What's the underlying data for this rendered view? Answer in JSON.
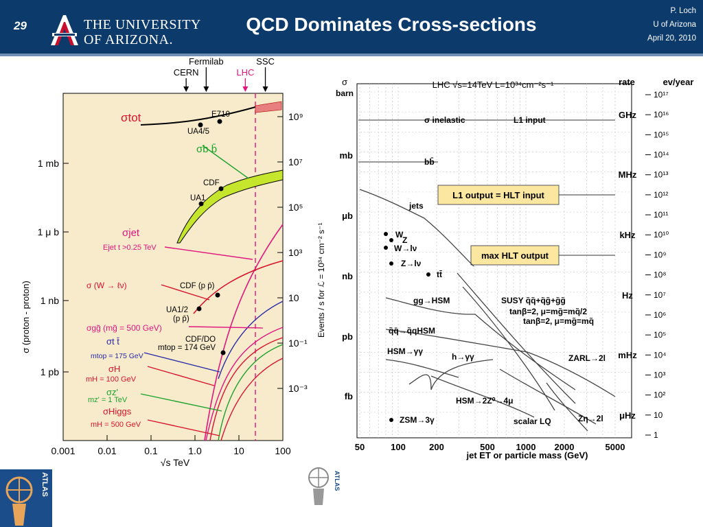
{
  "header": {
    "slide_number": "29",
    "university_line1": "THE UNIVERSITY",
    "university_line2": "OF ARIZONA.",
    "title": "QCD Dominates Cross-sections",
    "author": "P. Loch",
    "affiliation": "U of Arizona",
    "date": "April 20, 2010"
  },
  "colors": {
    "header_bg": "#0c3a6b",
    "left_plot_bg": "#f7ebcc",
    "magenta": "#e0157f",
    "red": "#d8122a",
    "green": "#1aa12a",
    "lime": "#c6e62e",
    "blue": "#2929a6"
  },
  "chart_data": [
    {
      "type": "line",
      "xlabel": "√s  TeV",
      "ylabel": "σ (proton - proton)",
      "right_axis_label": "Events / s for ℒ = 10³⁴ cm⁻² s⁻¹",
      "x_scale": "log",
      "xlim": [
        0.001,
        100
      ],
      "x_ticks": [
        "0.001",
        "0.01",
        "0.1",
        "1.0",
        "10",
        "100"
      ],
      "y_ticks_left": [
        "1 mb",
        "1 μ b",
        "1 nb",
        "1 pb"
      ],
      "y_ticks_right": [
        "10⁹",
        "10⁷",
        "10⁵",
        "10³",
        "10",
        "10⁻¹",
        "10⁻³"
      ],
      "top_markers": [
        {
          "label": "CERN",
          "sqrt_s_TeV": 0.63
        },
        {
          "label": "Fermilab",
          "sqrt_s_TeV": 1.8
        },
        {
          "label": "LHC",
          "sqrt_s_TeV": 14
        },
        {
          "label": "SSC",
          "sqrt_s_TeV": 40
        }
      ],
      "curve_labels": [
        {
          "text": "σtot"
        },
        {
          "text": "σb b̄"
        },
        {
          "text": "σjet"
        },
        {
          "text": "Ejet t >0.25 TeV"
        },
        {
          "text": "σ (W → ℓν)"
        },
        {
          "text": "σgg̃ (mg̃ = 500 GeV)"
        },
        {
          "text": "σt t̄"
        },
        {
          "text": "mtop = 175 GeV"
        },
        {
          "text": "σH"
        },
        {
          "text": "mH = 100 GeV"
        },
        {
          "text": "σz'"
        },
        {
          "text": "mz' = 1 TeV"
        },
        {
          "text": "σHiggs"
        },
        {
          "text": "mH = 500 GeV"
        }
      ],
      "experiment_points": [
        {
          "label": "E710",
          "sqrt_s_TeV": 1.8
        },
        {
          "label": "UA4/5",
          "sqrt_s_TeV": 0.55
        },
        {
          "label": "CDF",
          "sqrt_s_TeV": 1.8
        },
        {
          "label": "UA1",
          "sqrt_s_TeV": 0.63
        },
        {
          "label": "CDF (p p̄)",
          "sqrt_s_TeV": 1.8
        },
        {
          "label": "UA1/2",
          "sqrt_s_TeV": 0.63
        },
        {
          "label": "(p p̄)",
          "sqrt_s_TeV": 0.63
        },
        {
          "label": "CDF/DO",
          "sqrt_s_TeV": 1.8
        },
        {
          "label": "mtop = 174 GeV",
          "sqrt_s_TeV": 1.8
        }
      ]
    },
    {
      "type": "line",
      "title": "LHC    √s=14TeV      L=10³⁴cm⁻²s⁻¹",
      "xlabel": "jet ET or particle mass (GeV)",
      "ylabel_top": "σ",
      "ylabel_unit": "barn",
      "x_scale": "log",
      "xlim": [
        50,
        5000
      ],
      "x_ticks": [
        "50",
        "100",
        "200",
        "500",
        "1000",
        "2000",
        "5000"
      ],
      "y_ticks_left": [
        "mb",
        "μb",
        "nb",
        "pb",
        "fb"
      ],
      "rate_label": "rate",
      "rate_ticks": [
        "GHz",
        "MHz",
        "kHz",
        "Hz",
        "mHz",
        "μHz"
      ],
      "events_label": "ev/year",
      "events_ticks": [
        "10¹⁷",
        "10¹⁶",
        "10¹⁵",
        "10¹⁴",
        "10¹³",
        "10¹²",
        "10¹¹",
        "10¹⁰",
        "10⁹",
        "10⁸",
        "10⁷",
        "10⁶",
        "10⁵",
        "10⁴",
        "10³",
        "10²",
        "10",
        "1"
      ],
      "boxes": [
        "L1 output = HLT input",
        "max HLT output"
      ],
      "labels": [
        "σ inelastic",
        "L1 input",
        "bb̄",
        "jets",
        "W",
        "Z",
        "W→lν",
        "Z→lν",
        "tt̄",
        "gg→HSM",
        "SUSY q̃q̃+q̃g̃+g̃g̃",
        "tanβ=2, μ=mg̃=mq̃/2",
        "tanβ=2, μ=mg̃=mq̃",
        "q̃q̄→q̃qHSM",
        "HSM→γγ",
        "h→γγ",
        "ZARL→2l",
        "HSM→2Z⁰→4μ",
        "scalar LQ",
        "Zη→2l",
        "ZSM→3γ"
      ],
      "points": [
        {
          "label": "W",
          "mass_GeV": 80
        },
        {
          "label": "Z",
          "mass_GeV": 91
        },
        {
          "label": "W→lν",
          "mass_GeV": 80
        },
        {
          "label": "Z→lν",
          "mass_GeV": 91
        },
        {
          "label": "tt̄",
          "mass_GeV": 175
        },
        {
          "label": "ZSM→3γ",
          "mass_GeV": 91
        }
      ]
    }
  ],
  "atlas_logo_text": "ATLAS"
}
